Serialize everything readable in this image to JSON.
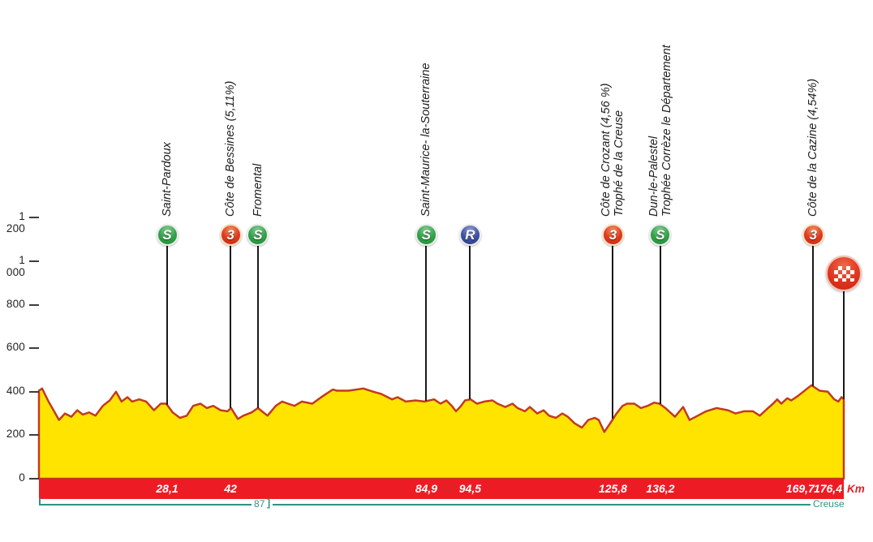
{
  "chart_data": {
    "type": "area",
    "description": "Cycling stage elevation profile",
    "xlabel": "",
    "ylabel": "",
    "km_axis_label": "Km",
    "xlim_km": [
      0,
      176.4
    ],
    "ylim": [
      0,
      1300
    ],
    "grid": false,
    "y_ticks": [
      {
        "value": 1200,
        "label": "1 200"
      },
      {
        "value": 1000,
        "label": "1 000"
      },
      {
        "value": 800,
        "label": "800"
      },
      {
        "value": 600,
        "label": "600"
      },
      {
        "value": 400,
        "label": "400"
      },
      {
        "value": 200,
        "label": "200"
      },
      {
        "value": 0,
        "label": "0"
      }
    ],
    "profile_km_elev": [
      [
        0,
        405
      ],
      [
        0.7,
        415
      ],
      [
        2.1,
        355
      ],
      [
        3.2,
        315
      ],
      [
        4.4,
        270
      ],
      [
        5.7,
        300
      ],
      [
        7.1,
        285
      ],
      [
        8.4,
        315
      ],
      [
        9.6,
        295
      ],
      [
        11,
        305
      ],
      [
        12.4,
        290
      ],
      [
        14,
        335
      ],
      [
        15.5,
        360
      ],
      [
        16.9,
        400
      ],
      [
        18.1,
        355
      ],
      [
        19.4,
        375
      ],
      [
        20.4,
        355
      ],
      [
        22,
        365
      ],
      [
        23.5,
        355
      ],
      [
        25.2,
        315
      ],
      [
        26.7,
        345
      ],
      [
        27.9,
        345
      ],
      [
        29.3,
        305
      ],
      [
        30.9,
        280
      ],
      [
        32.4,
        290
      ],
      [
        33.8,
        335
      ],
      [
        35.4,
        345
      ],
      [
        36.8,
        325
      ],
      [
        38.2,
        335
      ],
      [
        39.8,
        315
      ],
      [
        41.3,
        310
      ],
      [
        42.1,
        325
      ],
      [
        43.6,
        275
      ],
      [
        44.8,
        290
      ],
      [
        46.6,
        305
      ],
      [
        48,
        325
      ],
      [
        50.1,
        290
      ],
      [
        51.9,
        335
      ],
      [
        53.3,
        355
      ],
      [
        54.6,
        345
      ],
      [
        56,
        335
      ],
      [
        57.6,
        355
      ],
      [
        59.9,
        345
      ],
      [
        62.2,
        380
      ],
      [
        64.4,
        410
      ],
      [
        65.3,
        405
      ],
      [
        67.9,
        405
      ],
      [
        71.1,
        415
      ],
      [
        73.3,
        400
      ],
      [
        75,
        390
      ],
      [
        77.4,
        365
      ],
      [
        78.6,
        375
      ],
      [
        80.4,
        355
      ],
      [
        82.5,
        360
      ],
      [
        84.5,
        355
      ],
      [
        86.6,
        365
      ],
      [
        88,
        345
      ],
      [
        89.3,
        360
      ],
      [
        90.5,
        335
      ],
      [
        91.4,
        310
      ],
      [
        92.3,
        330
      ],
      [
        93.4,
        360
      ],
      [
        94.6,
        365
      ],
      [
        96,
        345
      ],
      [
        97.6,
        355
      ],
      [
        99.4,
        360
      ],
      [
        100.5,
        345
      ],
      [
        102.2,
        330
      ],
      [
        103.8,
        345
      ],
      [
        104.9,
        325
      ],
      [
        106.5,
        310
      ],
      [
        107.6,
        330
      ],
      [
        109.2,
        300
      ],
      [
        110.6,
        315
      ],
      [
        111.8,
        290
      ],
      [
        113.3,
        280
      ],
      [
        114.7,
        300
      ],
      [
        115.9,
        285
      ],
      [
        117.4,
        255
      ],
      [
        119,
        235
      ],
      [
        120.4,
        270
      ],
      [
        121.8,
        280
      ],
      [
        122.7,
        270
      ],
      [
        123.9,
        215
      ],
      [
        125.2,
        255
      ],
      [
        126.6,
        300
      ],
      [
        127.9,
        335
      ],
      [
        128.9,
        345
      ],
      [
        130.5,
        345
      ],
      [
        131.9,
        325
      ],
      [
        133.4,
        335
      ],
      [
        134.8,
        350
      ],
      [
        136,
        345
      ],
      [
        137.3,
        325
      ],
      [
        139.4,
        285
      ],
      [
        141.2,
        330
      ],
      [
        142.6,
        270
      ],
      [
        144.4,
        290
      ],
      [
        146.2,
        310
      ],
      [
        148.5,
        325
      ],
      [
        151,
        315
      ],
      [
        152.7,
        300
      ],
      [
        154.5,
        310
      ],
      [
        156.5,
        310
      ],
      [
        158,
        290
      ],
      [
        159.8,
        325
      ],
      [
        160.9,
        345
      ],
      [
        161.8,
        365
      ],
      [
        162.7,
        345
      ],
      [
        164,
        370
      ],
      [
        164.9,
        360
      ],
      [
        166.3,
        380
      ],
      [
        167.5,
        400
      ],
      [
        169.3,
        430
      ],
      [
        171.1,
        405
      ],
      [
        172.9,
        400
      ],
      [
        174.3,
        365
      ],
      [
        175.2,
        355
      ],
      [
        175.9,
        375
      ],
      [
        176.4,
        365
      ]
    ],
    "markers": [
      {
        "km": 28.1,
        "type": "sprint",
        "symbol": "S",
        "label_lines": [
          "Saint-Pardoux"
        ],
        "km_label": "28,1"
      },
      {
        "km": 42,
        "type": "climb",
        "symbol": "3",
        "label_lines": [
          "Côte de Bessines (5,11%)"
        ],
        "km_label": "42"
      },
      {
        "km": 48,
        "type": "sprint",
        "symbol": "S",
        "label_lines": [
          "Fromental"
        ],
        "km_label": ""
      },
      {
        "km": 84.9,
        "type": "sprint",
        "symbol": "S",
        "label_lines": [
          "Saint-Maurice- la-Souterraine"
        ],
        "km_label": "84,9"
      },
      {
        "km": 94.5,
        "type": "feed",
        "symbol": "R",
        "label_lines": [],
        "km_label": "94,5"
      },
      {
        "km": 125.8,
        "type": "climb",
        "symbol": "3",
        "label_lines": [
          "Côte de Crozant (4,56 %)",
          "Trophé de la Creuse"
        ],
        "km_label": "125,8"
      },
      {
        "km": 136.2,
        "type": "sprint",
        "symbol": "S",
        "label_lines": [
          "Dun-le-Palestel",
          "Trophée Corrèze le Département"
        ],
        "km_label": "136,2"
      },
      {
        "km": 169.7,
        "type": "climb",
        "symbol": "3",
        "label_lines": [
          "Côte de la Cazine (4,54%)"
        ],
        "km_label": "169,7"
      },
      {
        "km": 176.4,
        "type": "finish",
        "symbol": "",
        "label_lines": [],
        "km_label": "176,4"
      }
    ],
    "departments": [
      {
        "label": "87",
        "from_km": 0,
        "to_km": 46.6
      },
      {
        "label": "Creuse",
        "from_km": 51.3,
        "to_km": 169.1
      }
    ],
    "boundary_glyph": "]",
    "colors": {
      "profile_fill": "#ffe400",
      "profile_stroke": "#c23a1f",
      "distance_bar": "#ed1c24",
      "department_line": "#2e9485",
      "sprint_green": "#2f9e45",
      "climb_red": "#e23a1f",
      "feed_blue": "#3c51a3",
      "axis_text": "#231f20"
    }
  }
}
